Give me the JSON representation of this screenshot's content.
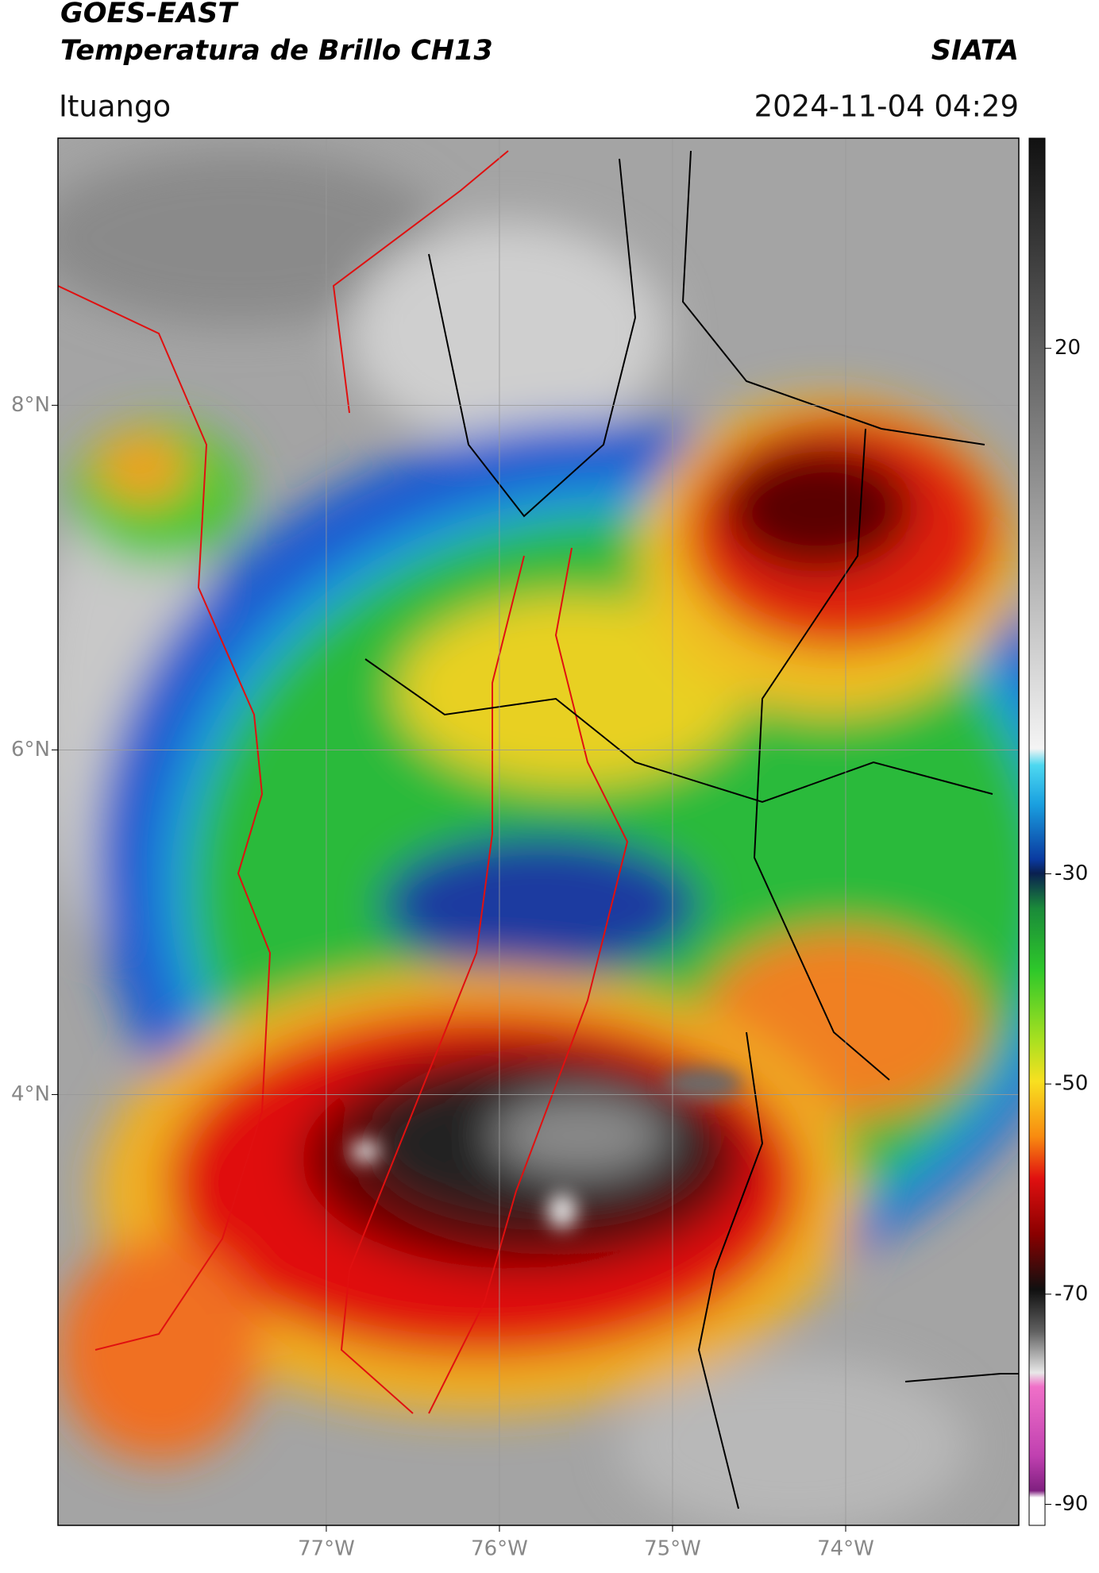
{
  "header": {
    "title": "GOES-EAST",
    "subtitle": "Temperatura de Brillo CH13",
    "source": "SIATA",
    "location": "Ituango",
    "datetime": "2024-11-04 04:29"
  },
  "map": {
    "xlim": [
      -78.55,
      -73.0
    ],
    "ylim": [
      1.5,
      9.55
    ],
    "xticks": [
      {
        "value": -77,
        "label": "77°W"
      },
      {
        "value": -76,
        "label": "76°W"
      },
      {
        "value": -75,
        "label": "75°W"
      },
      {
        "value": -74,
        "label": "74°W"
      }
    ],
    "yticks": [
      {
        "value": 8,
        "label": "8°N"
      },
      {
        "value": 6,
        "label": "6°N"
      },
      {
        "value": 4,
        "label": "4°N"
      }
    ],
    "grid": true
  },
  "colorbar": {
    "lim": [
      -92,
      40
    ],
    "ticks": [
      20,
      -30,
      -50,
      -70,
      -90
    ]
  }
}
